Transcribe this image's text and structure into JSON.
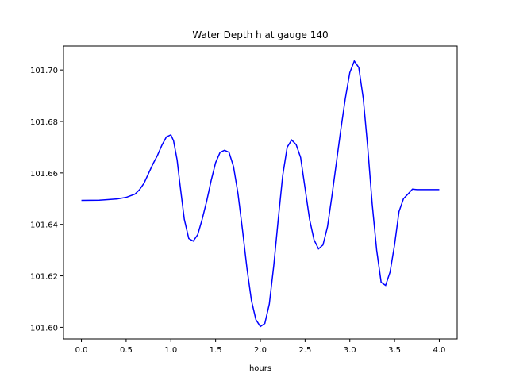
{
  "chart_data": {
    "type": "line",
    "title": "Water Depth h at gauge 140",
    "xlabel": "hours",
    "ylabel": "",
    "xlim": [
      -0.2,
      4.2
    ],
    "ylim": [
      101.5955,
      101.7093
    ],
    "grid": false,
    "xticks": [
      {
        "value": 0.0,
        "label": "0.0"
      },
      {
        "value": 0.5,
        "label": "0.5"
      },
      {
        "value": 1.0,
        "label": "1.0"
      },
      {
        "value": 1.5,
        "label": "1.5"
      },
      {
        "value": 2.0,
        "label": "2.0"
      },
      {
        "value": 2.5,
        "label": "2.5"
      },
      {
        "value": 3.0,
        "label": "3.0"
      },
      {
        "value": 3.5,
        "label": "3.5"
      },
      {
        "value": 4.0,
        "label": "4.0"
      }
    ],
    "yticks": [
      {
        "value": 101.6,
        "label": "101.60"
      },
      {
        "value": 101.62,
        "label": "101.62"
      },
      {
        "value": 101.64,
        "label": "101.64"
      },
      {
        "value": 101.66,
        "label": "101.66"
      },
      {
        "value": 101.68,
        "label": "101.68"
      },
      {
        "value": 101.7,
        "label": "101.70"
      }
    ],
    "series": [
      {
        "color": "#0000ff",
        "x": [
          0.0,
          0.2,
          0.4,
          0.5,
          0.6,
          0.65,
          0.7,
          0.75,
          0.8,
          0.85,
          0.9,
          0.95,
          1.0,
          1.03,
          1.07,
          1.1,
          1.15,
          1.2,
          1.25,
          1.3,
          1.35,
          1.4,
          1.45,
          1.5,
          1.55,
          1.6,
          1.65,
          1.7,
          1.75,
          1.8,
          1.85,
          1.9,
          1.95,
          2.0,
          2.05,
          2.1,
          2.15,
          2.2,
          2.25,
          2.3,
          2.35,
          2.4,
          2.45,
          2.5,
          2.55,
          2.6,
          2.65,
          2.7,
          2.75,
          2.8,
          2.85,
          2.9,
          2.95,
          3.0,
          3.05,
          3.1,
          3.15,
          3.2,
          3.25,
          3.3,
          3.35,
          3.4,
          3.45,
          3.5,
          3.55,
          3.6,
          3.65,
          3.7,
          3.75,
          3.8,
          3.85,
          3.9,
          3.95,
          4.0
        ],
        "y": [
          101.6493,
          101.6494,
          101.6499,
          101.6505,
          101.6518,
          101.6535,
          101.656,
          101.6598,
          101.6635,
          101.6668,
          101.6708,
          101.674,
          101.6748,
          101.6725,
          101.665,
          101.656,
          101.642,
          101.6345,
          101.6335,
          101.636,
          101.642,
          101.649,
          101.657,
          101.664,
          101.668,
          101.6688,
          101.668,
          101.6625,
          101.652,
          101.638,
          101.623,
          101.6105,
          101.603,
          101.6003,
          101.6015,
          101.609,
          101.624,
          101.642,
          101.659,
          101.67,
          101.6728,
          101.671,
          101.666,
          101.654,
          101.642,
          101.634,
          101.6305,
          101.632,
          101.639,
          101.651,
          101.664,
          101.677,
          101.689,
          101.699,
          101.7035,
          101.701,
          101.689,
          101.67,
          101.648,
          101.63,
          101.6175,
          101.6163,
          101.6215,
          101.632,
          101.645,
          101.65,
          101.6518,
          101.6537,
          101.6535,
          101.6535,
          101.6535,
          101.6535,
          101.6535,
          101.6535
        ]
      }
    ]
  }
}
